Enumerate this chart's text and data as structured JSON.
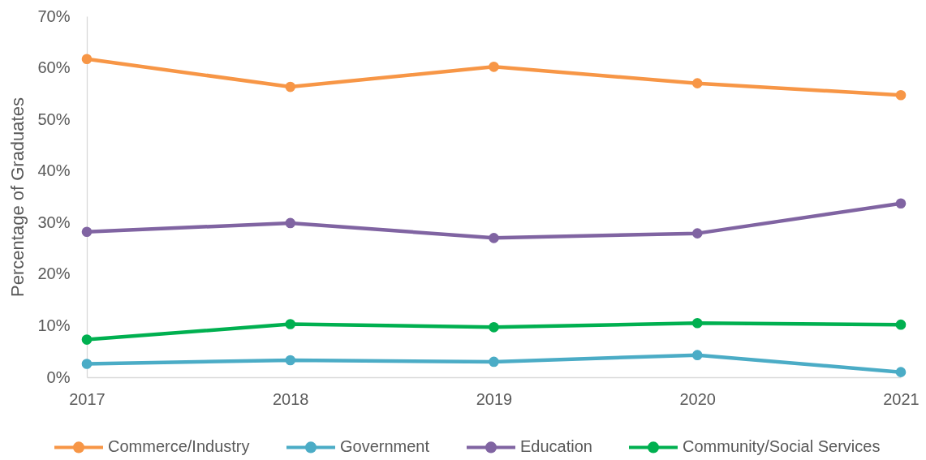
{
  "chart_data": {
    "type": "line",
    "ylabel": "Percentage of Graduates",
    "categories": [
      "2017",
      "2018",
      "2019",
      "2020",
      "2021"
    ],
    "series": [
      {
        "name": "Commerce/Industry",
        "color": "#f79646",
        "values": [
          61.7,
          56.3,
          60.2,
          57.0,
          54.7
        ]
      },
      {
        "name": "Government",
        "color": "#4bacc6",
        "values": [
          2.6,
          3.3,
          3.0,
          4.3,
          1.0
        ]
      },
      {
        "name": "Education",
        "color": "#8064a2",
        "values": [
          28.2,
          29.9,
          27.0,
          27.9,
          33.7
        ]
      },
      {
        "name": "Community/Social Services",
        "color": "#00b050",
        "values": [
          7.3,
          10.3,
          9.7,
          10.5,
          10.2
        ]
      }
    ],
    "ylim": [
      0,
      70
    ],
    "yticks": [
      {
        "value": 0,
        "label": "0%"
      },
      {
        "value": 10,
        "label": "10%"
      },
      {
        "value": 20,
        "label": "20%"
      },
      {
        "value": 30,
        "label": "30%"
      },
      {
        "value": 40,
        "label": "40%"
      },
      {
        "value": 50,
        "label": "50%"
      },
      {
        "value": 60,
        "label": "60%"
      },
      {
        "value": 70,
        "label": "70%"
      }
    ],
    "legend": "bottom",
    "marker": "circle"
  }
}
